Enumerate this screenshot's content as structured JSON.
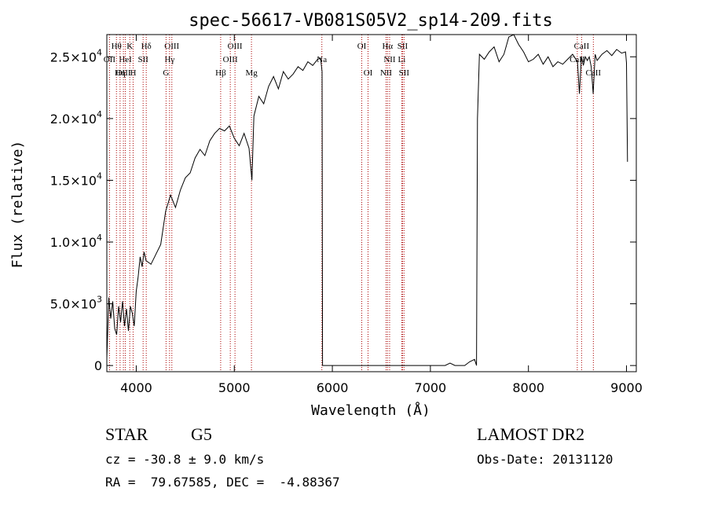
{
  "chart_data": {
    "type": "line",
    "title": "spec-56617-VB081S05V2_sp14-209.fits",
    "xlabel": "Wavelength (Å)",
    "ylabel": "Flux (relative)",
    "xlim": [
      3700,
      9100
    ],
    "ylim": [
      -500,
      26800
    ],
    "grid": false,
    "x_ticks": [
      4000,
      5000,
      6000,
      7000,
      8000,
      9000
    ],
    "x_tick_labels": [
      "4000",
      "5000",
      "6000",
      "7000",
      "8000",
      "9000"
    ],
    "y_ticks": [
      0,
      5000,
      10000,
      15000,
      20000,
      25000
    ],
    "y_tick_labels": [
      {
        "mant": "0",
        "exp": ""
      },
      {
        "mant": "5.0×10",
        "exp": "3"
      },
      {
        "mant": "1.0×10",
        "exp": "4"
      },
      {
        "mant": "1.5×10",
        "exp": "4"
      },
      {
        "mant": "2.0×10",
        "exp": "4"
      },
      {
        "mant": "2.5×10",
        "exp": "4"
      }
    ],
    "series": [
      {
        "x": [
          3700,
          3720,
          3740,
          3760,
          3780,
          3800,
          3820,
          3840,
          3860,
          3880,
          3900,
          3920,
          3940,
          3960,
          3980,
          4000,
          4020,
          4040,
          4060,
          4080,
          4100,
          4150,
          4200,
          4250,
          4300,
          4350,
          4400,
          4450,
          4500,
          4550,
          4600,
          4650,
          4700,
          4750,
          4800,
          4850,
          4900,
          4950,
          5000,
          5050,
          5100,
          5150,
          5180,
          5200,
          5250,
          5300,
          5350,
          5400,
          5450,
          5500,
          5550,
          5600,
          5650,
          5700,
          5750,
          5800,
          5850,
          5880,
          5895,
          5900,
          5905,
          5910,
          5920,
          5950,
          6000,
          6100,
          6200,
          6300,
          6400,
          6500,
          6600,
          6700,
          6800,
          6900,
          7000,
          7100,
          7150,
          7200,
          7250,
          7300,
          7350,
          7400,
          7450,
          7470,
          7480,
          7500,
          7550,
          7600,
          7650,
          7700,
          7750,
          7800,
          7850,
          7900,
          7950,
          8000,
          8050,
          8100,
          8150,
          8200,
          8250,
          8300,
          8350,
          8400,
          8450,
          8500,
          8520,
          8540,
          8560,
          8580,
          8600,
          8620,
          8640,
          8660,
          8680,
          8700,
          8750,
          8800,
          8850,
          8900,
          8950,
          8990,
          9000,
          9010
        ],
        "y": [
          600,
          5500,
          3800,
          5200,
          3000,
          2500,
          4800,
          3500,
          5200,
          3200,
          4600,
          2800,
          4800,
          4200,
          3200,
          6000,
          7200,
          8800,
          8000,
          9200,
          8500,
          8200,
          9000,
          9800,
          12500,
          13800,
          12800,
          14200,
          15200,
          15600,
          16800,
          17500,
          17000,
          18200,
          18800,
          19200,
          19000,
          19400,
          18400,
          17800,
          18800,
          17600,
          15000,
          20200,
          21800,
          21200,
          22600,
          23400,
          22400,
          23800,
          23200,
          23600,
          24200,
          23900,
          24600,
          24300,
          24800,
          24900,
          23800,
          0,
          0,
          0,
          0,
          0,
          0,
          0,
          0,
          0,
          0,
          0,
          0,
          0,
          0,
          0,
          0,
          0,
          0,
          200,
          0,
          0,
          0,
          300,
          500,
          0,
          20000,
          25200,
          24800,
          25400,
          25800,
          24600,
          25200,
          26600,
          26800,
          26000,
          25400,
          24600,
          24800,
          25200,
          24400,
          25000,
          24200,
          24600,
          24400,
          24800,
          25200,
          24600,
          22000,
          25000,
          24300,
          25000,
          24700,
          25000,
          24200,
          22000,
          25200,
          24700,
          25200,
          25500,
          25100,
          25600,
          25300,
          25400,
          24500,
          16500
        ]
      }
    ],
    "line_markers": [
      {
        "name": "Hθ",
        "wl": 3798,
        "row": 0
      },
      {
        "name": "K",
        "wl": 3934,
        "row": 0
      },
      {
        "name": "Hδ",
        "wl": 4102,
        "row": 0
      },
      {
        "name": "OIII",
        "wl": 4363,
        "row": 0
      },
      {
        "name": "OIII",
        "wl": 5007,
        "row": 0
      },
      {
        "name": "OI",
        "wl": 6300,
        "row": 0
      },
      {
        "name": "Hα",
        "wl": 6563,
        "row": 0
      },
      {
        "name": "SII",
        "wl": 6716,
        "row": 0
      },
      {
        "name": "CaII",
        "wl": 8542,
        "row": 0
      },
      {
        "name": "OII",
        "wl": 3727,
        "row": 1
      },
      {
        "name": "HeI",
        "wl": 3889,
        "row": 1
      },
      {
        "name": "SII",
        "wl": 4070,
        "row": 1
      },
      {
        "name": "Hγ",
        "wl": 4340,
        "row": 1
      },
      {
        "name": "OIII",
        "wl": 4959,
        "row": 1
      },
      {
        "name": "Na",
        "wl": 5893,
        "row": 1
      },
      {
        "name": "NII",
        "wl": 6584,
        "row": 1
      },
      {
        "name": "Li",
        "wl": 6708,
        "row": 1
      },
      {
        "name": "CaII",
        "wl": 8498,
        "row": 1
      },
      {
        "name": "OIII",
        "wl": 3869,
        "row": 2
      },
      {
        "name": "Hη",
        "wl": 3835,
        "row": 2
      },
      {
        "name": "H",
        "wl": 3968,
        "row": 2
      },
      {
        "name": "G",
        "wl": 4304,
        "row": 2
      },
      {
        "name": "Hβ",
        "wl": 4861,
        "row": 2
      },
      {
        "name": "Mg",
        "wl": 5175,
        "row": 2
      },
      {
        "name": "OI",
        "wl": 6364,
        "row": 2
      },
      {
        "name": "NII",
        "wl": 6548,
        "row": 2
      },
      {
        "name": "SII",
        "wl": 6731,
        "row": 2
      },
      {
        "name": "CaII",
        "wl": 8662,
        "row": 2
      }
    ],
    "marker_color": "#aa0000"
  },
  "footer": {
    "object": "STAR",
    "subclass": "G5",
    "survey": "LAMOST DR2",
    "cz": "cz = -30.8 ± 9.0 km/s",
    "obs_date": "Obs-Date: 20131120",
    "coords": "RA =  79.67585, DEC =  -4.88367"
  }
}
